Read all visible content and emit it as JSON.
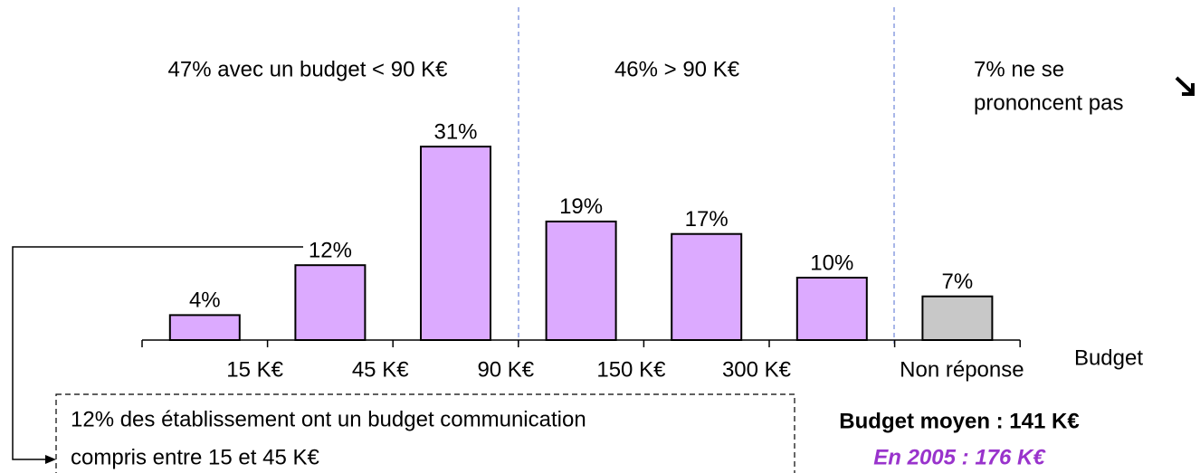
{
  "chart_data": {
    "type": "bar",
    "values": [
      4,
      12,
      31,
      19,
      17,
      10,
      7
    ],
    "value_labels": [
      "4%",
      "12%",
      "31%",
      "19%",
      "17%",
      "10%",
      "7%"
    ],
    "colors": [
      "#dcaaff",
      "#dcaaff",
      "#dcaaff",
      "#dcaaff",
      "#dcaaff",
      "#dcaaff",
      "#c8c8c8"
    ],
    "categories": [
      null,
      null,
      null,
      null,
      null,
      null,
      "Non réponse"
    ],
    "boundary_labels": [
      "15 K€",
      "45 K€",
      "90 K€",
      "150 K€",
      "300 K€"
    ],
    "x_label": "Budget",
    "segments": [
      "47% avec un budget < 90 K€",
      "46% > 90 K€",
      "7% ne se",
      "prononcent pas"
    ],
    "callout": [
      "12% des établissement ont un budget communication",
      "compris entre 15 et 45 K€"
    ],
    "average": "Budget moyen : 141 K€",
    "previous": "En 2005 : 176 K€"
  }
}
